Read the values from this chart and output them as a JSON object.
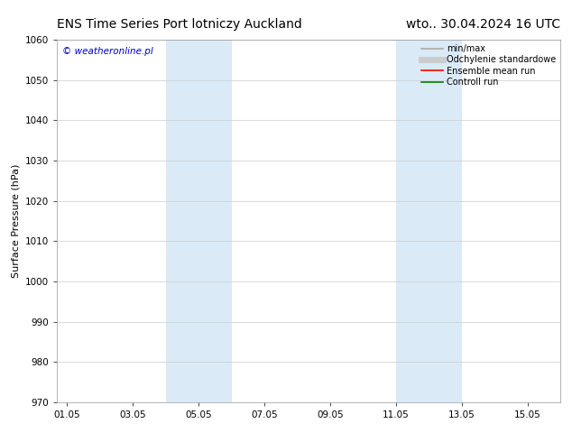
{
  "title_left": "ENS Time Series Port lotniczy Auckland",
  "title_right": "wto.. 30.04.2024 16 UTC",
  "ylabel": "Surface Pressure (hPa)",
  "ylim": [
    970,
    1060
  ],
  "yticks": [
    970,
    980,
    990,
    1000,
    1010,
    1020,
    1030,
    1040,
    1050,
    1060
  ],
  "xtick_labels": [
    "01.05",
    "03.05",
    "05.05",
    "07.05",
    "09.05",
    "11.05",
    "13.05",
    "15.05"
  ],
  "xtick_positions": [
    0,
    2,
    4,
    6,
    8,
    10,
    12,
    14
  ],
  "xlim": [
    -0.3,
    15.0
  ],
  "shaded_bands": [
    {
      "x_start": 3.0,
      "x_end": 5.0
    },
    {
      "x_start": 10.0,
      "x_end": 12.0
    }
  ],
  "shaded_color": "#daeaf7",
  "watermark_text": "© weatheronline.pl",
  "watermark_color": "#0000cc",
  "legend_items": [
    {
      "label": "min/max",
      "color": "#aaaaaa",
      "lw": 1.2
    },
    {
      "label": "Odchylenie standardowe",
      "color": "#cccccc",
      "lw": 5
    },
    {
      "label": "Ensemble mean run",
      "color": "red",
      "lw": 1.2
    },
    {
      "label": "Controll run",
      "color": "green",
      "lw": 1.2
    }
  ],
  "background_color": "#ffffff",
  "grid_color": "#cccccc",
  "title_fontsize": 10,
  "axis_label_fontsize": 8,
  "tick_fontsize": 7.5,
  "watermark_fontsize": 7.5,
  "legend_fontsize": 7
}
